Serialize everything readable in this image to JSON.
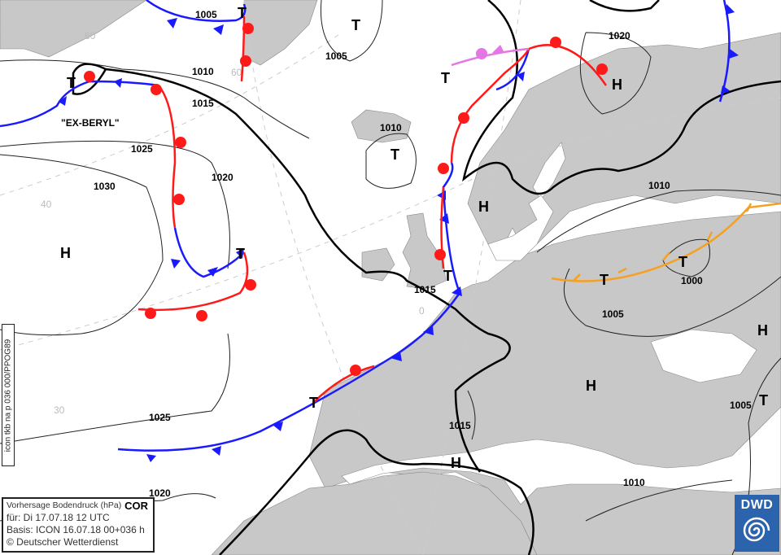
{
  "legend": {
    "title": "Vorhersage Bodendruck (hPa)",
    "flag": "COR",
    "valid": "für:  Di 17.07.18  12 UTC",
    "basis": "Basis: ICON  16.07.18 00+036 h",
    "copyright": "© Deutscher Wetterdienst"
  },
  "product_code": "icon tkb na p 036 000/PPOG89",
  "logo": {
    "text": "DWD",
    "color": "#2b63ad"
  },
  "storm_name": "\"EX-BERYL\"",
  "isobars": [
    "1005",
    "1005",
    "1010",
    "1015",
    "1025",
    "1020",
    "1030",
    "1010",
    "1015",
    "1025",
    "1020",
    "1020",
    "1010",
    "1000",
    "1005",
    "1005",
    "1015",
    "1010"
  ],
  "pressure_centers": [
    "T",
    "T",
    "T",
    "T",
    "H",
    "H",
    "T",
    "T",
    "T",
    "H",
    "T",
    "T",
    "H",
    "H",
    "H",
    "T",
    "T"
  ],
  "grid_labels": [
    "60",
    "60",
    "40",
    "30",
    "0"
  ],
  "colors": {
    "land": "#c8c8c8",
    "cold_front": "#1a1aff",
    "warm_front": "#ff1a1a",
    "occlusion": "#e377e3",
    "trough": "#f5a020"
  }
}
